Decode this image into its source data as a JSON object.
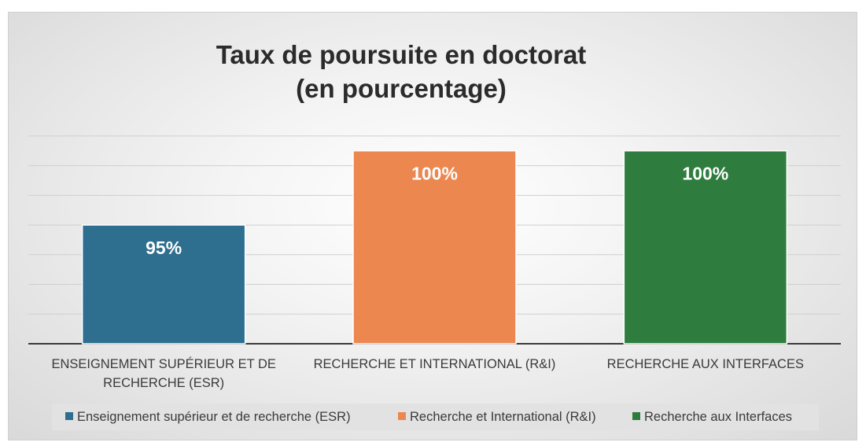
{
  "chart_data": {
    "type": "bar",
    "title": [
      "Taux de poursuite en doctorat",
      "(en pourcentage)"
    ],
    "categories": [
      [
        "ENSEIGNEMENT SUPÉRIEUR ET DE",
        "RECHERCHE (ESR)"
      ],
      [
        "RECHERCHE ET INTERNATIONAL (R&I)"
      ],
      [
        "RECHERCHE AUX INTERFACES"
      ]
    ],
    "values": [
      95,
      100,
      100
    ],
    "data_labels": [
      "95%",
      "100%",
      "100%"
    ],
    "colors": [
      "#2e6e8e",
      "#ec8750",
      "#2e7d3e"
    ],
    "legend": [
      "Enseignement supérieur et de recherche (ESR)",
      "Recherche et International (R&I)",
      "Recherche aux Interfaces"
    ],
    "legend_position": "bottom",
    "ylim": [
      87,
      102
    ],
    "grid": true,
    "xlabel": "",
    "ylabel": ""
  }
}
